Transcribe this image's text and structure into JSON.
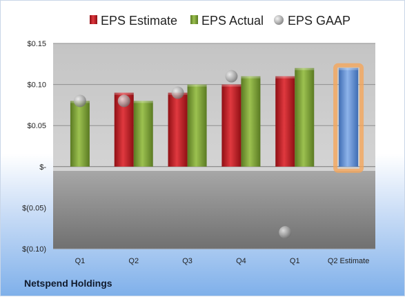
{
  "chart_data": {
    "type": "bar",
    "categories": [
      "Q1",
      "Q2",
      "Q3",
      "Q4",
      "Q1",
      "Q2 Estimate"
    ],
    "series": [
      {
        "name": "EPS Estimate",
        "values": [
          null,
          0.09,
          0.09,
          0.1,
          0.11,
          null
        ],
        "color": "#c8202a"
      },
      {
        "name": "EPS Actual",
        "values": [
          0.08,
          0.08,
          0.1,
          0.11,
          0.12,
          null
        ],
        "color": "#7ea33a"
      },
      {
        "name": "EPS GAAP",
        "values": [
          0.08,
          0.08,
          0.09,
          0.11,
          -0.08,
          null
        ],
        "color": "#9a9a9a",
        "style": "marker"
      },
      {
        "name": "Q2 Estimate",
        "values": [
          null,
          null,
          null,
          null,
          null,
          0.12
        ],
        "color": "#6b98d8",
        "highlight": "#f5a65b"
      }
    ],
    "yticks": [
      "$0.15",
      "$0.10",
      "$0.05",
      "$-",
      "$(0.05)",
      "$(0.10)"
    ],
    "ytick_values": [
      0.15,
      0.1,
      0.05,
      0,
      -0.05,
      -0.1
    ],
    "ylim": [
      -0.1,
      0.15
    ],
    "grid": true,
    "legend_position": "top"
  },
  "company": "Netspend Holdings"
}
